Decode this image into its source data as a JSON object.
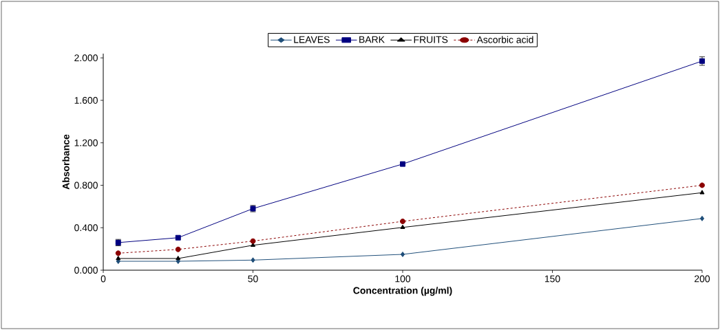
{
  "chart_data": {
    "type": "line",
    "xlabel": "Concentration (µg/ml)",
    "ylabel": "Absorbance",
    "x": [
      5,
      25,
      50,
      100,
      200
    ],
    "series": [
      {
        "name": "LEAVES",
        "color": "#1f4e79",
        "marker": "diamond",
        "line_style": "solid",
        "values": [
          0.084,
          0.084,
          0.095,
          0.149,
          0.487
        ]
      },
      {
        "name": "BARK",
        "color": "#000080",
        "marker": "square",
        "line_style": "solid",
        "values": [
          0.26,
          0.306,
          0.58,
          1.0,
          1.97
        ],
        "errors": [
          0.03,
          null,
          0.03,
          null,
          0.04
        ]
      },
      {
        "name": "FRUITS",
        "color": "#000000",
        "marker": "triangle",
        "line_style": "solid",
        "values": [
          0.11,
          0.11,
          0.235,
          0.403,
          0.73
        ]
      },
      {
        "name": "Ascorbic acid",
        "color": "#8b0000",
        "marker": "circle",
        "line_style": "dashed",
        "values": [
          0.16,
          0.196,
          0.274,
          0.46,
          0.8
        ]
      }
    ],
    "xlim": [
      0,
      200
    ],
    "xticks": [
      0,
      50,
      100,
      150,
      200
    ],
    "ylim": [
      0,
      2.04
    ],
    "yticks": [
      {
        "value": 0,
        "label": "0.000"
      },
      {
        "value": 0.4,
        "label": "0.400"
      },
      {
        "value": 0.8,
        "label": "0.800"
      },
      {
        "value": 1.2,
        "label": "1.200"
      },
      {
        "value": 1.6,
        "label": "1.600"
      },
      {
        "value": 2.0,
        "label": "2.000"
      }
    ],
    "legend": "top"
  }
}
